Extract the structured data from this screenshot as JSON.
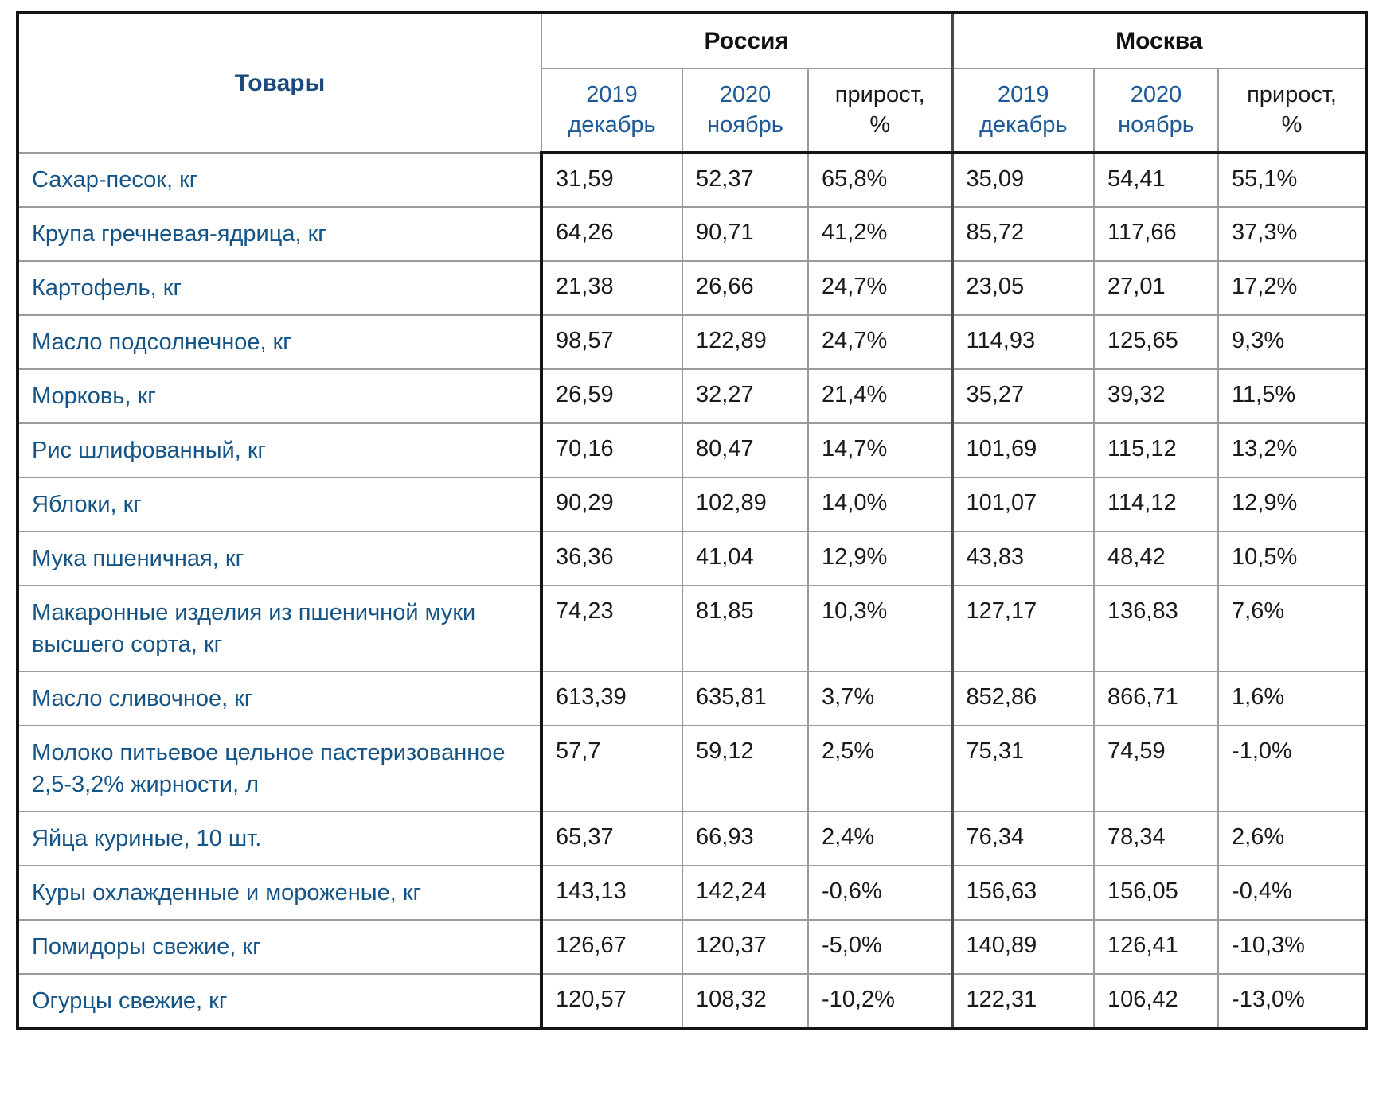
{
  "colors": {
    "products_header_navy": "#1a4b7c",
    "subheader_blue": "#1e5a97",
    "product_name_blue": "#155487",
    "value_black": "#1a1a1a",
    "outer_border_black": "#141414",
    "inner_border_gray": "#9b9b9b",
    "group_divider_gray": "#4a4a4a",
    "background": "#ffffff"
  },
  "table": {
    "products_header": "Товары",
    "region_groups": [
      {
        "label": "Россия"
      },
      {
        "label": "Москва"
      }
    ],
    "subheader": {
      "col_2019_year": "2019",
      "col_2019_month": "декабрь",
      "col_2020_year": "2020",
      "col_2020_month": "ноябрь",
      "growth_line1": "прирост,",
      "growth_line2": "%"
    },
    "rows": [
      {
        "name": "Сахар-песок, кг",
        "ru_2019": "31,59",
        "ru_2020": "52,37",
        "ru_growth": "65,8%",
        "msk_2019": "35,09",
        "msk_2020": "54,41",
        "msk_growth": "55,1%"
      },
      {
        "name": "Крупа гречневая-ядрица, кг",
        "ru_2019": "64,26",
        "ru_2020": "90,71",
        "ru_growth": "41,2%",
        "msk_2019": "85,72",
        "msk_2020": "117,66",
        "msk_growth": "37,3%"
      },
      {
        "name": "Картофель, кг",
        "ru_2019": "21,38",
        "ru_2020": "26,66",
        "ru_growth": "24,7%",
        "msk_2019": "23,05",
        "msk_2020": "27,01",
        "msk_growth": "17,2%"
      },
      {
        "name": "Масло подсолнечное, кг",
        "ru_2019": "98,57",
        "ru_2020": "122,89",
        "ru_growth": "24,7%",
        "msk_2019": "114,93",
        "msk_2020": "125,65",
        "msk_growth": "9,3%"
      },
      {
        "name": "Морковь, кг",
        "ru_2019": "26,59",
        "ru_2020": "32,27",
        "ru_growth": "21,4%",
        "msk_2019": "35,27",
        "msk_2020": "39,32",
        "msk_growth": "11,5%"
      },
      {
        "name": "Рис шлифованный, кг",
        "ru_2019": "70,16",
        "ru_2020": "80,47",
        "ru_growth": "14,7%",
        "msk_2019": "101,69",
        "msk_2020": "115,12",
        "msk_growth": "13,2%"
      },
      {
        "name": "Яблоки, кг",
        "ru_2019": "90,29",
        "ru_2020": "102,89",
        "ru_growth": "14,0%",
        "msk_2019": "101,07",
        "msk_2020": "114,12",
        "msk_growth": "12,9%"
      },
      {
        "name": "Мука пшеничная, кг",
        "ru_2019": "36,36",
        "ru_2020": "41,04",
        "ru_growth": "12,9%",
        "msk_2019": "43,83",
        "msk_2020": "48,42",
        "msk_growth": "10,5%"
      },
      {
        "name": "Макаронные изделия из пшеничной муки высшего сорта, кг",
        "ru_2019": "74,23",
        "ru_2020": "81,85",
        "ru_growth": "10,3%",
        "msk_2019": "127,17",
        "msk_2020": "136,83",
        "msk_growth": "7,6%"
      },
      {
        "name": "Масло сливочное, кг",
        "ru_2019": "613,39",
        "ru_2020": "635,81",
        "ru_growth": "3,7%",
        "msk_2019": "852,86",
        "msk_2020": "866,71",
        "msk_growth": "1,6%"
      },
      {
        "name": "Молоко питьевое цельное пастеризованное 2,5-3,2% жирности, л",
        "ru_2019": "57,7",
        "ru_2020": "59,12",
        "ru_growth": "2,5%",
        "msk_2019": "75,31",
        "msk_2020": "74,59",
        "msk_growth": "-1,0%"
      },
      {
        "name": "Яйца куриные, 10 шт.",
        "ru_2019": "65,37",
        "ru_2020": "66,93",
        "ru_growth": "2,4%",
        "msk_2019": "76,34",
        "msk_2020": "78,34",
        "msk_growth": "2,6%"
      },
      {
        "name": "Куры охлажденные и мороженые, кг",
        "ru_2019": "143,13",
        "ru_2020": "142,24",
        "ru_growth": "-0,6%",
        "msk_2019": "156,63",
        "msk_2020": "156,05",
        "msk_growth": "-0,4%"
      },
      {
        "name": "Помидоры свежие, кг",
        "ru_2019": "126,67",
        "ru_2020": "120,37",
        "ru_growth": "-5,0%",
        "msk_2019": "140,89",
        "msk_2020": "126,41",
        "msk_growth": "-10,3%"
      },
      {
        "name": "Огурцы свежие, кг",
        "ru_2019": "120,57",
        "ru_2020": "108,32",
        "ru_growth": "-10,2%",
        "msk_2019": "122,31",
        "msk_2020": "106,42",
        "msk_growth": "-13,0%"
      }
    ]
  }
}
